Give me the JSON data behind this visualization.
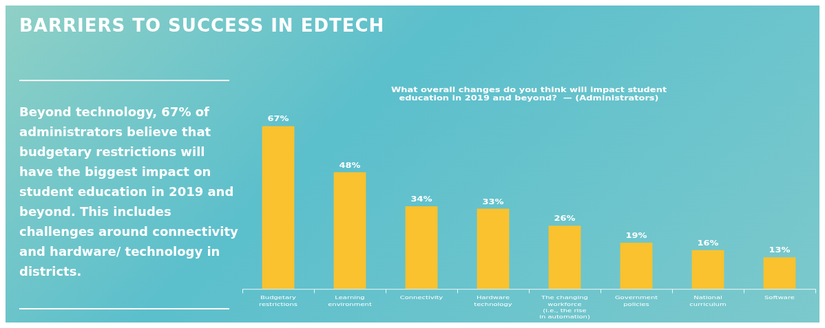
{
  "chart_data": {
    "type": "bar",
    "title": "BARRIERS TO SUCCESS IN EDTECH",
    "subtitle": "What overall changes do you think will impact student education in 2019 and beyond?  — (Administrators)",
    "annotations": [
      "Beyond technology, 67% of administrators believe that budgetary restrictions will have the biggest impact on student education in 2019 and beyond. This includes challenges around connectivity and hardware/ technology in districts."
    ],
    "categories": [
      "Budgetary restrictions",
      "Learning environment",
      "Connectivity",
      "Hardware technology",
      "The changing workforce (i.e., the rise in automation)",
      "Government policies",
      "National curriculum",
      "Software"
    ],
    "values": [
      67,
      48,
      34,
      33,
      26,
      19,
      16,
      13
    ],
    "value_labels": [
      "67%",
      "48%",
      "34%",
      "33%",
      "26%",
      "19%",
      "16%",
      "13%"
    ],
    "color": "#f9c22e"
  }
}
